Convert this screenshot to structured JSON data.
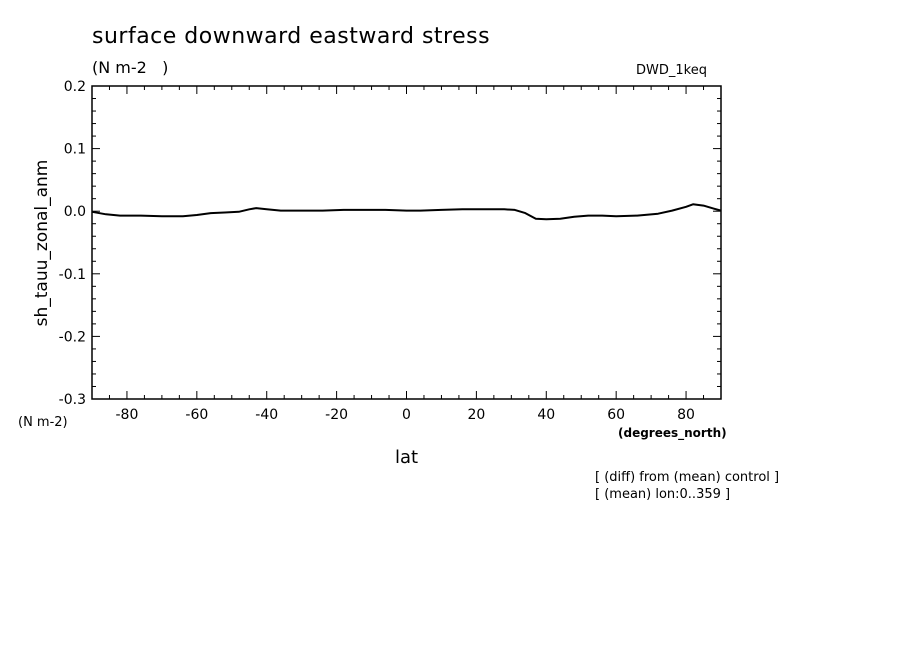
{
  "chart_data": {
    "type": "line",
    "title": "surface downward eastward stress",
    "units_label": "(N m-2   )",
    "dataset_label": "DWD_1keq",
    "xlabel": "lat",
    "x_units": "(degrees_north)",
    "ylabel": "sh_tauu_zonal_anm",
    "y_units": "(N m-2)",
    "xlim": [
      -90,
      90
    ],
    "ylim": [
      -0.3,
      0.2
    ],
    "x_ticks": [
      -80,
      -60,
      -40,
      -20,
      0,
      20,
      40,
      60,
      80
    ],
    "x_tick_labels": [
      "-80",
      "-60",
      "-40",
      "-20",
      "0",
      "20",
      "40",
      "60",
      "80"
    ],
    "y_ticks": [
      -0.3,
      -0.2,
      -0.1,
      0.0,
      0.1,
      0.2
    ],
    "y_tick_labels": [
      "-0.3",
      "-0.2",
      "-0.1",
      "0.0",
      "0.1",
      "0.2"
    ],
    "grid": false,
    "notes": [
      "[ (diff) from (mean) control ]",
      "[ (mean) lon:0..359 ]"
    ],
    "series": [
      {
        "x": [
          -90,
          -86,
          -82,
          -76,
          -70,
          -64,
          -60,
          -56,
          -52,
          -48,
          -45,
          -43,
          -40,
          -36,
          -30,
          -24,
          -18,
          -12,
          -6,
          0,
          4,
          10,
          16,
          22,
          28,
          31,
          34,
          37,
          40,
          44,
          48,
          52,
          56,
          60,
          66,
          72,
          76,
          80,
          82,
          85,
          88,
          90
        ],
        "y": [
          -0.001,
          -0.005,
          -0.007,
          -0.007,
          -0.008,
          -0.008,
          -0.006,
          -0.003,
          -0.002,
          -0.001,
          0.003,
          0.005,
          0.003,
          0.001,
          0.001,
          0.001,
          0.002,
          0.002,
          0.002,
          0.001,
          0.001,
          0.002,
          0.003,
          0.003,
          0.003,
          0.002,
          -0.003,
          -0.012,
          -0.013,
          -0.012,
          -0.009,
          -0.007,
          -0.007,
          -0.008,
          -0.007,
          -0.004,
          0.001,
          0.007,
          0.011,
          0.009,
          0.004,
          0.001
        ]
      }
    ]
  }
}
